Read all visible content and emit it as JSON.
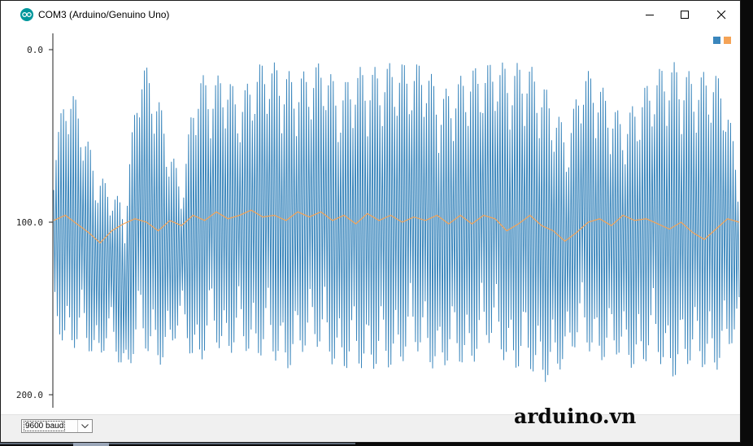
{
  "window": {
    "title": "COM3 (Arduino/Genuino Uno)",
    "app_icon": "arduino-logo-icon",
    "controls": {
      "minimize_icon": "minimize-icon",
      "maximize_icon": "maximize-icon",
      "close_icon": "close-icon"
    }
  },
  "plotter": {
    "y_ticks": [
      "200.0",
      "100.0",
      "0.0"
    ],
    "legend_colors": [
      "#3a86bc",
      "#f5a356"
    ]
  },
  "bottom_bar": {
    "baud_rate": "9600 baud",
    "dropdown_icon": "chevron-down-icon"
  },
  "watermark": "arduino.vn",
  "chart_data": {
    "type": "line",
    "ylim": [
      0,
      200
    ],
    "y_ticks": [
      0,
      100,
      200
    ],
    "grid": false,
    "legend": "top-right",
    "series": [
      {
        "color": "#3a86bc",
        "description_free": true,
        "envelope": {
          "upper": [
            140,
            185,
            160,
            130,
            120,
            110,
            195,
            185,
            150,
            120,
            190,
            180,
            190,
            170,
            190,
            195,
            190,
            185,
            190,
            195,
            175,
            190,
            190,
            190,
            195,
            190,
            195,
            175,
            180,
            190,
            190,
            195,
            190,
            195,
            185,
            170,
            150,
            190,
            185,
            170,
            160,
            175,
            185,
            195,
            190,
            185,
            190,
            180,
            125
          ],
          "lower": [
            45,
            20,
            35,
            15,
            35,
            5,
            35,
            15,
            20,
            45,
            5,
            40,
            15,
            35,
            15,
            30,
            10,
            20,
            30,
            25,
            10,
            20,
            10,
            20,
            10,
            30,
            20,
            10,
            25,
            10,
            30,
            30,
            10,
            20,
            5,
            10,
            20,
            35,
            15,
            25,
            20,
            10,
            30,
            5,
            15,
            20,
            10,
            20,
            40
          ]
        }
      },
      {
        "color": "#f5a356",
        "values": [
          101,
          104,
          99,
          94,
          88,
          95,
          99,
          102,
          100,
          95,
          101,
          98,
          104,
          101,
          106,
          102,
          104,
          107,
          103,
          104,
          101,
          106,
          103,
          106,
          101,
          104,
          99,
          105,
          101,
          104,
          100,
          103,
          101,
          104,
          99,
          104,
          99,
          104,
          102,
          95,
          99,
          104,
          98,
          95,
          89,
          94,
          100,
          102,
          98,
          104,
          101,
          102,
          99,
          96,
          100,
          94,
          90,
          96,
          102,
          100
        ]
      }
    ]
  }
}
